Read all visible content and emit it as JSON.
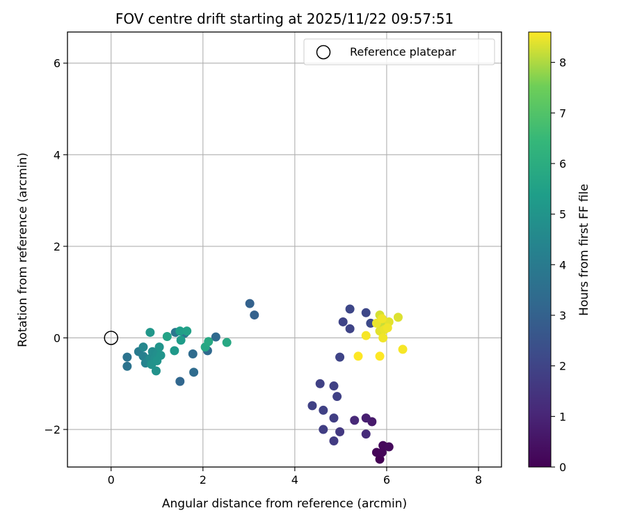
{
  "chart_data": {
    "type": "scatter",
    "title": "FOV centre drift starting at 2025/11/22 09:57:51",
    "xlabel": "Angular distance from reference (arcmin)",
    "ylabel": "Rotation from reference (arcmin)",
    "xlim": [
      -0.95,
      8.5
    ],
    "ylim": [
      -2.82,
      6.68
    ],
    "xticks": [
      0,
      2,
      4,
      6,
      8
    ],
    "yticks": [
      -2,
      0,
      2,
      4,
      6
    ],
    "xtick_labels": [
      "0",
      "2",
      "4",
      "6",
      "8"
    ],
    "ytick_labels": [
      "−2",
      "0",
      "2",
      "4",
      "6"
    ],
    "grid": true,
    "legend": {
      "position": "top-right",
      "entries": [
        "Reference platepar"
      ]
    },
    "reference_point": {
      "x": 0,
      "y": 0,
      "marker": "open-circle"
    },
    "colorbar": {
      "label": "Hours from first FF file",
      "min": 0,
      "max": 8.6,
      "ticks": [
        0,
        1,
        2,
        3,
        4,
        5,
        6,
        7,
        8
      ],
      "tick_labels": [
        "0",
        "1",
        "2",
        "3",
        "4",
        "5",
        "6",
        "7",
        "8"
      ],
      "colormap": "viridis"
    },
    "points": [
      {
        "x": 5.85,
        "y": -2.65,
        "t": 0.0
      },
      {
        "x": 5.78,
        "y": -2.5,
        "t": 0.1
      },
      {
        "x": 5.9,
        "y": -2.5,
        "t": 0.15
      },
      {
        "x": 5.92,
        "y": -2.35,
        "t": 0.2
      },
      {
        "x": 6.05,
        "y": -2.38,
        "t": 0.25
      },
      {
        "x": 5.68,
        "y": -1.83,
        "t": 0.7
      },
      {
        "x": 5.55,
        "y": -1.75,
        "t": 0.8
      },
      {
        "x": 5.3,
        "y": -1.8,
        "t": 1.1
      },
      {
        "x": 5.55,
        "y": -2.1,
        "t": 1.2
      },
      {
        "x": 4.98,
        "y": -2.05,
        "t": 1.6
      },
      {
        "x": 4.85,
        "y": -2.25,
        "t": 1.7
      },
      {
        "x": 4.62,
        "y": -2.0,
        "t": 1.8
      },
      {
        "x": 4.85,
        "y": -1.75,
        "t": 1.8
      },
      {
        "x": 4.38,
        "y": -1.48,
        "t": 1.9
      },
      {
        "x": 4.62,
        "y": -1.58,
        "t": 1.9
      },
      {
        "x": 4.85,
        "y": -1.05,
        "t": 1.9
      },
      {
        "x": 4.55,
        "y": -1.0,
        "t": 1.9
      },
      {
        "x": 4.92,
        "y": -1.28,
        "t": 1.9
      },
      {
        "x": 4.98,
        "y": -0.42,
        "t": 2.0
      },
      {
        "x": 5.05,
        "y": 0.35,
        "t": 2.0
      },
      {
        "x": 5.2,
        "y": 0.2,
        "t": 2.0
      },
      {
        "x": 5.2,
        "y": 0.63,
        "t": 2.1
      },
      {
        "x": 5.55,
        "y": 0.55,
        "t": 2.1
      },
      {
        "x": 5.65,
        "y": 0.32,
        "t": 2.2
      },
      {
        "x": 3.02,
        "y": 0.75,
        "t": 3.0
      },
      {
        "x": 3.12,
        "y": 0.5,
        "t": 3.0
      },
      {
        "x": 1.5,
        "y": -0.95,
        "t": 3.2
      },
      {
        "x": 2.28,
        "y": 0.02,
        "t": 3.3
      },
      {
        "x": 2.1,
        "y": -0.28,
        "t": 3.3
      },
      {
        "x": 1.78,
        "y": -0.35,
        "t": 3.4
      },
      {
        "x": 1.8,
        "y": -0.75,
        "t": 3.4
      },
      {
        "x": 0.35,
        "y": -0.42,
        "t": 3.7
      },
      {
        "x": 0.35,
        "y": -0.62,
        "t": 3.7
      },
      {
        "x": 1.4,
        "y": 0.12,
        "t": 3.8
      },
      {
        "x": 1.6,
        "y": 0.1,
        "t": 3.9
      },
      {
        "x": 0.6,
        "y": -0.3,
        "t": 4.0
      },
      {
        "x": 0.7,
        "y": -0.4,
        "t": 4.2
      },
      {
        "x": 0.75,
        "y": -0.55,
        "t": 4.3
      },
      {
        "x": 0.8,
        "y": -0.5,
        "t": 4.4
      },
      {
        "x": 0.7,
        "y": -0.2,
        "t": 4.5
      },
      {
        "x": 0.85,
        "y": -0.45,
        "t": 4.6
      },
      {
        "x": 0.9,
        "y": -0.3,
        "t": 4.7
      },
      {
        "x": 0.95,
        "y": -0.45,
        "t": 4.8
      },
      {
        "x": 1.0,
        "y": -0.35,
        "t": 4.8
      },
      {
        "x": 0.88,
        "y": -0.58,
        "t": 4.9
      },
      {
        "x": 0.98,
        "y": -0.72,
        "t": 4.9
      },
      {
        "x": 1.05,
        "y": -0.2,
        "t": 5.0
      },
      {
        "x": 1.08,
        "y": -0.38,
        "t": 5.0
      },
      {
        "x": 1.0,
        "y": -0.5,
        "t": 5.0
      },
      {
        "x": 0.85,
        "y": 0.12,
        "t": 5.1
      },
      {
        "x": 1.38,
        "y": -0.28,
        "t": 5.2
      },
      {
        "x": 1.52,
        "y": -0.05,
        "t": 5.3
      },
      {
        "x": 1.5,
        "y": 0.15,
        "t": 5.4
      },
      {
        "x": 1.65,
        "y": 0.15,
        "t": 5.5
      },
      {
        "x": 1.22,
        "y": 0.03,
        "t": 5.6
      },
      {
        "x": 2.05,
        "y": -0.2,
        "t": 5.7
      },
      {
        "x": 2.12,
        "y": -0.08,
        "t": 5.8
      },
      {
        "x": 2.52,
        "y": -0.1,
        "t": 5.8
      },
      {
        "x": 5.9,
        "y": 0.3,
        "t": 8.2
      },
      {
        "x": 5.85,
        "y": 0.5,
        "t": 8.3
      },
      {
        "x": 6.25,
        "y": 0.45,
        "t": 8.35
      },
      {
        "x": 6.05,
        "y": 0.35,
        "t": 8.4
      },
      {
        "x": 5.85,
        "y": 0.15,
        "t": 8.4
      },
      {
        "x": 5.95,
        "y": 0.18,
        "t": 8.45
      },
      {
        "x": 5.78,
        "y": 0.32,
        "t": 8.45
      },
      {
        "x": 6.02,
        "y": 0.22,
        "t": 8.5
      },
      {
        "x": 5.9,
        "y": 0.42,
        "t": 8.5
      },
      {
        "x": 5.92,
        "y": 0.0,
        "t": 8.5
      },
      {
        "x": 5.55,
        "y": 0.05,
        "t": 8.55
      },
      {
        "x": 6.35,
        "y": -0.25,
        "t": 8.55
      },
      {
        "x": 5.38,
        "y": -0.4,
        "t": 8.6
      },
      {
        "x": 5.85,
        "y": -0.4,
        "t": 8.6
      }
    ]
  }
}
